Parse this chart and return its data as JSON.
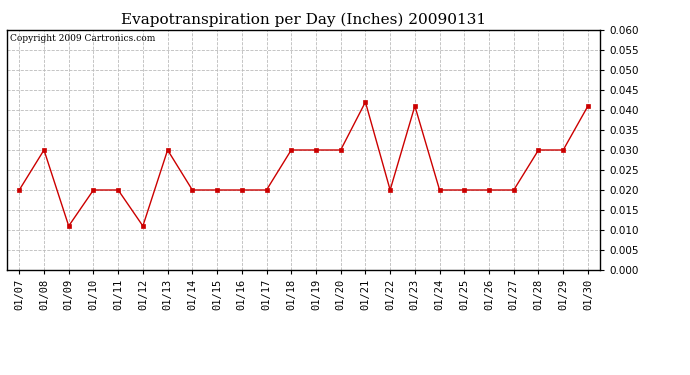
{
  "title": "Evapotranspiration per Day (Inches) 20090131",
  "copyright_text": "Copyright 2009 Cartronics.com",
  "x_labels": [
    "01/07",
    "01/08",
    "01/09",
    "01/10",
    "01/11",
    "01/12",
    "01/13",
    "01/14",
    "01/15",
    "01/16",
    "01/17",
    "01/18",
    "01/19",
    "01/20",
    "01/21",
    "01/22",
    "01/23",
    "01/24",
    "01/25",
    "01/26",
    "01/27",
    "01/28",
    "01/29",
    "01/30"
  ],
  "y_values": [
    0.02,
    0.03,
    0.011,
    0.02,
    0.02,
    0.011,
    0.03,
    0.02,
    0.02,
    0.02,
    0.02,
    0.03,
    0.03,
    0.03,
    0.042,
    0.02,
    0.041,
    0.02,
    0.02,
    0.02,
    0.02,
    0.03,
    0.03,
    0.041
  ],
  "line_color": "#cc0000",
  "marker": "s",
  "marker_size": 2.5,
  "ylim": [
    0.0,
    0.06
  ],
  "ytick_step": 0.005,
  "background_color": "#ffffff",
  "plot_bg_color": "#ffffff",
  "grid_color": "#bbbbbb",
  "grid_style": "--",
  "title_fontsize": 11,
  "copyright_fontsize": 6.5,
  "tick_fontsize": 7.5
}
